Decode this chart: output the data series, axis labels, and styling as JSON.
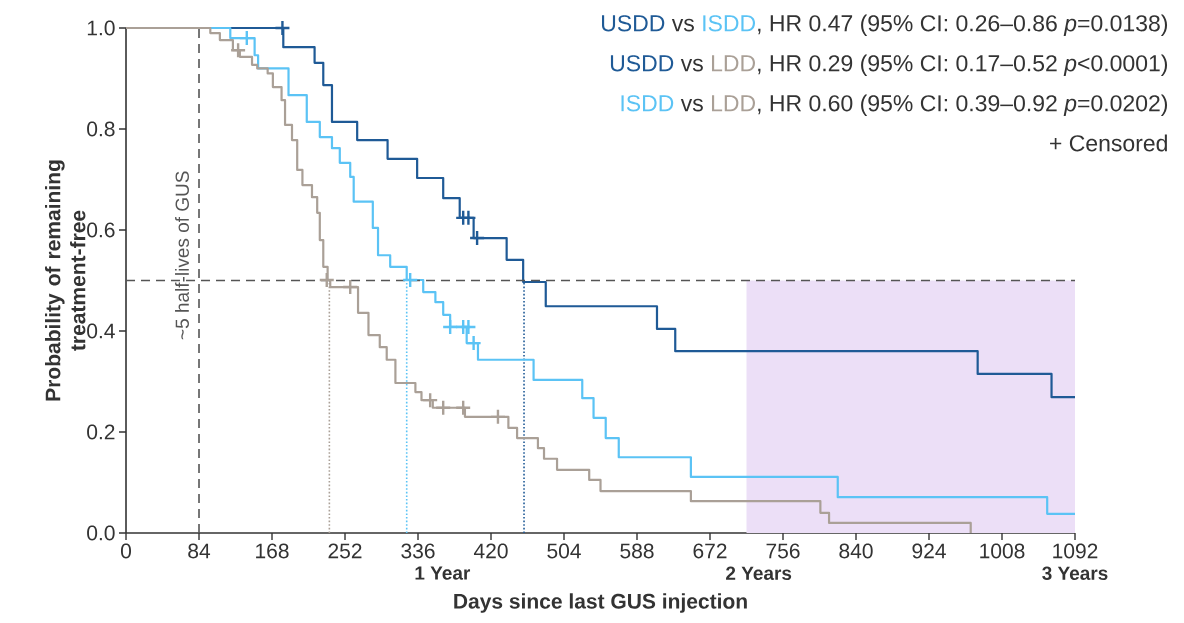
{
  "chart_data": {
    "type": "step",
    "xlabel": "Days since last GUS injection",
    "ylabel": "Probability of remaining treatment-free",
    "xlim": [
      0,
      1092
    ],
    "ylim": [
      0,
      1.0
    ],
    "xticks": [
      0,
      84,
      168,
      252,
      336,
      420,
      504,
      588,
      672,
      756,
      840,
      924,
      1008,
      1092
    ],
    "yticks": [
      {
        "value": 0,
        "label": "0.0"
      },
      0.2,
      0.4,
      0.6,
      0.8,
      {
        "value": 1.0,
        "label": "1.0"
      }
    ],
    "grid": false,
    "series": [
      {
        "name": "USDD",
        "color": "#1f5a96",
        "x": [
          0,
          181,
          217,
          227,
          237,
          266,
          301,
          335,
          365,
          384,
          400,
          438,
          457,
          483,
          611,
          632,
          980,
          1065,
          1092
        ],
        "values": [
          1.0,
          0.962,
          0.931,
          0.887,
          0.814,
          0.778,
          0.741,
          0.703,
          0.663,
          0.624,
          0.584,
          0.541,
          0.497,
          0.449,
          0.404,
          0.36,
          0.315,
          0.269,
          0.269
        ]
      },
      {
        "name": "ISDD",
        "color": "#5bc3f5",
        "x": [
          0,
          120,
          148,
          152,
          187,
          208,
          223,
          237,
          246,
          258,
          262,
          284,
          290,
          304,
          323,
          342,
          356,
          365,
          373,
          392,
          405,
          469,
          525,
          538,
          552,
          567,
          650,
          819,
          1060,
          1092
        ],
        "values": [
          1.0,
          0.98,
          0.946,
          0.92,
          0.867,
          0.814,
          0.784,
          0.762,
          0.733,
          0.705,
          0.656,
          0.604,
          0.55,
          0.527,
          0.501,
          0.477,
          0.457,
          0.432,
          0.408,
          0.376,
          0.343,
          0.303,
          0.267,
          0.228,
          0.188,
          0.15,
          0.111,
          0.071,
          0.038,
          0.038
        ]
      },
      {
        "name": "LDD",
        "color": "#aaa097",
        "x": [
          0,
          97,
          108,
          123,
          131,
          145,
          151,
          163,
          169,
          179,
          183,
          191,
          197,
          203,
          214,
          220,
          223,
          227,
          232,
          235,
          267,
          279,
          292,
          300,
          310,
          333,
          340,
          353,
          390,
          440,
          450,
          474,
          481,
          496,
          533,
          546,
          650,
          799,
          809,
          972
        ],
        "values": [
          1.0,
          0.99,
          0.976,
          0.956,
          0.943,
          0.927,
          0.92,
          0.91,
          0.883,
          0.857,
          0.808,
          0.778,
          0.719,
          0.689,
          0.665,
          0.634,
          0.58,
          0.527,
          0.501,
          0.487,
          0.436,
          0.392,
          0.368,
          0.343,
          0.297,
          0.279,
          0.263,
          0.248,
          0.23,
          0.208,
          0.188,
          0.168,
          0.147,
          0.125,
          0.105,
          0.083,
          0.063,
          0.04,
          0.02,
          0.0
        ]
      },
      {
        "color": "#1f5a96",
        "type": "scatter",
        "marker": "cross",
        "x": [
          180,
          388,
          394,
          404
        ],
        "values": [
          1.0,
          0.624,
          0.624,
          0.584
        ]
      },
      {
        "color": "#5bc3f5",
        "type": "scatter",
        "marker": "cross",
        "x": [
          139,
          327,
          373,
          388,
          394,
          400
        ],
        "values": [
          0.98,
          0.501,
          0.408,
          0.408,
          0.408,
          0.376
        ]
      },
      {
        "color": "#aaa097",
        "type": "scatter",
        "marker": "cross",
        "x": [
          129,
          231,
          258,
          350,
          365,
          388,
          428
        ],
        "values": [
          0.956,
          0.501,
          0.487,
          0.263,
          0.248,
          0.248,
          0.23
        ]
      },
      {
        "color": "#1f5a96",
        "type": "line",
        "line_style": "dotted",
        "x": [
          458,
          458
        ],
        "values": [
          0,
          0.5
        ]
      },
      {
        "color": "#5bc3f5",
        "type": "line",
        "line_style": "dotted",
        "x": [
          323,
          323
        ],
        "values": [
          0,
          0.5
        ]
      },
      {
        "color": "#aaa097",
        "type": "line",
        "line_style": "dotted",
        "x": [
          234,
          234
        ],
        "values": [
          0,
          0.5
        ]
      },
      {
        "color": "#ecdff7",
        "type": "area",
        "x": [
          714,
          1092
        ],
        "values": [
          0.5,
          0.5
        ]
      }
    ],
    "ref_lines": [
      {
        "axis": "x",
        "value": 84,
        "label": "~5 half-lives of GUS",
        "color": "#555555",
        "line_style": "dashed"
      },
      {
        "axis": "y",
        "value": 0.5,
        "color": "#555555",
        "line_style": "dashed"
      }
    ],
    "x2lim": [
      0,
      3
    ],
    "x2ticks": [
      {
        "value": 1,
        "label": "1 Year"
      },
      {
        "value": 2,
        "label": "2 Years"
      },
      {
        "value": 3,
        "label": "3 Years"
      }
    ],
    "annotations": [
      "vs",
      ", HR 0.47 (95% CI: 0.26–0.86 *p*=0.0138)",
      "vs",
      ", HR 0.29 (95% CI: 0.17–0.52 *p*<0.0001)",
      "vs",
      ", HR 0.60 (95% CI: 0.39–0.92 *p*=0.0202)",
      "+ Censored"
    ]
  }
}
